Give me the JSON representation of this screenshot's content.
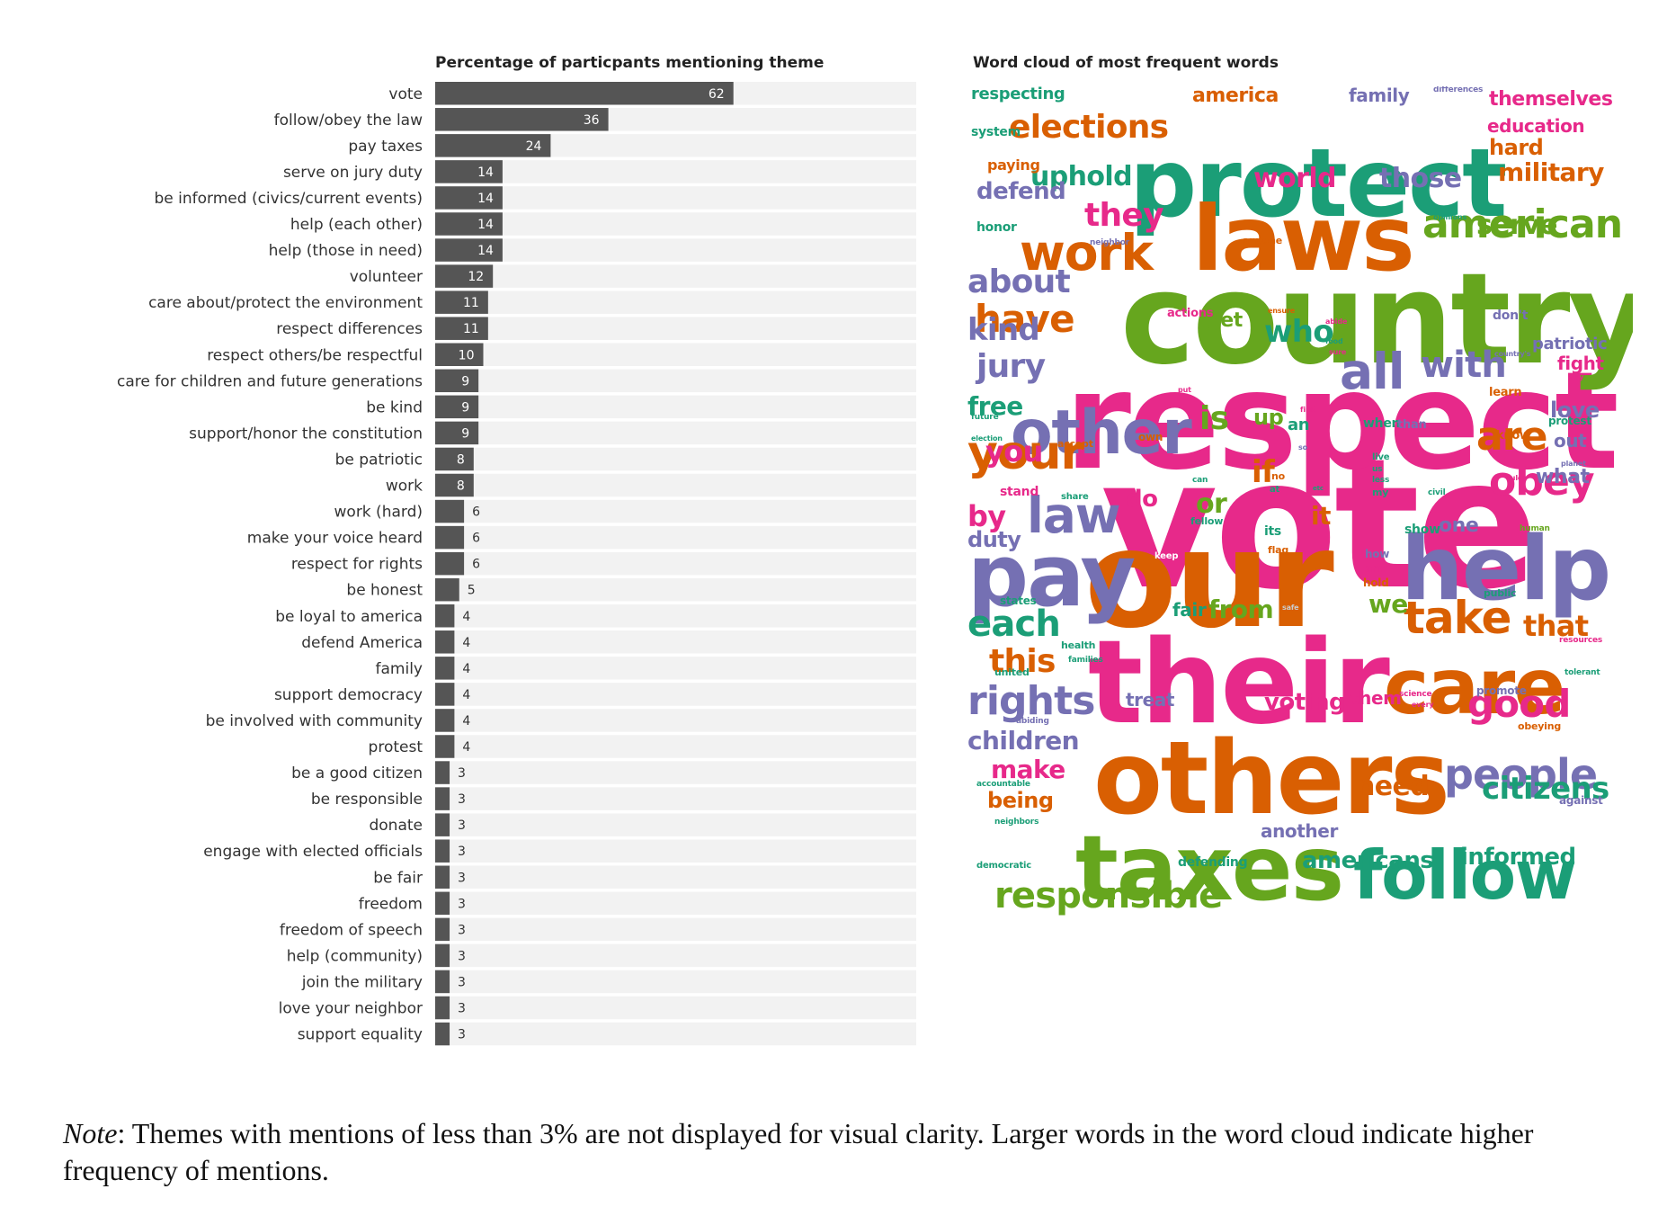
{
  "chart_data": [
    {
      "type": "bar",
      "orientation": "horizontal",
      "title": "Percentage of particpants mentioning theme",
      "xlim": [
        0,
        100
      ],
      "categories": [
        "vote",
        "follow/obey the law",
        "pay taxes",
        "serve on jury duty",
        "be informed (civics/current events)",
        "help (each other)",
        "help (those in need)",
        "volunteer",
        "care about/protect the environment",
        "respect differences",
        "respect others/be respectful",
        "care for children and future generations",
        "be kind",
        "support/honor the constitution",
        "be patriotic",
        "work",
        "work (hard)",
        "make your voice heard",
        "respect for rights",
        "be honest",
        "be loyal to america",
        "defend America",
        "family",
        "support democracy",
        "be involved with community",
        "protest",
        "be a good citizen",
        "be responsible",
        "donate",
        "engage with elected officials",
        "be fair",
        "freedom",
        "freedom of speech",
        "help (community)",
        "join the military",
        "love your neighbor",
        "support equality"
      ],
      "values": [
        62,
        36,
        24,
        14,
        14,
        14,
        14,
        12,
        11,
        11,
        10,
        9,
        9,
        9,
        8,
        8,
        6,
        6,
        6,
        5,
        4,
        4,
        4,
        4,
        4,
        4,
        3,
        3,
        3,
        3,
        3,
        3,
        3,
        3,
        3,
        3,
        3
      ],
      "bar_color": "#555555",
      "track_color": "#f2f2f2",
      "label_color_inside": "#ffffff",
      "label_color_outside": "#333333"
    },
    {
      "type": "word-cloud",
      "title": "Word cloud of most frequent words",
      "words": [
        {
          "text": "vote",
          "color": "#e7298a",
          "weight": 200
        },
        {
          "text": "respect",
          "color": "#e7298a",
          "weight": 150
        },
        {
          "text": "country",
          "color": "#66a61e",
          "weight": 140
        },
        {
          "text": "our",
          "color": "#d95f02",
          "weight": 150
        },
        {
          "text": "their",
          "color": "#e7298a",
          "weight": 128
        },
        {
          "text": "others",
          "color": "#d95f02",
          "weight": 112
        },
        {
          "text": "protect",
          "color": "#1b9e77",
          "weight": 105
        },
        {
          "text": "laws",
          "color": "#d95f02",
          "weight": 100
        },
        {
          "text": "taxes",
          "color": "#66a61e",
          "weight": 100
        },
        {
          "text": "help",
          "color": "#7570b3",
          "weight": 98
        },
        {
          "text": "pay",
          "color": "#7570b3",
          "weight": 95
        },
        {
          "text": "care",
          "color": "#d95f02",
          "weight": 85
        },
        {
          "text": "follow",
          "color": "#1b9e77",
          "weight": 75
        },
        {
          "text": "other",
          "color": "#7570b3",
          "weight": 68
        },
        {
          "text": "all",
          "color": "#7570b3",
          "weight": 55
        },
        {
          "text": "work",
          "color": "#d95f02",
          "weight": 55
        },
        {
          "text": "law",
          "color": "#7570b3",
          "weight": 55
        },
        {
          "text": "your",
          "color": "#d95f02",
          "weight": 52
        },
        {
          "text": "take",
          "color": "#d95f02",
          "weight": 50
        },
        {
          "text": "people",
          "color": "#7570b3",
          "weight": 46
        },
        {
          "text": "rights",
          "color": "#7570b3",
          "weight": 44
        },
        {
          "text": "american",
          "color": "#66a61e",
          "weight": 44
        },
        {
          "text": "obey",
          "color": "#e7298a",
          "weight": 44
        },
        {
          "text": "are",
          "color": "#d95f02",
          "weight": 44
        },
        {
          "text": "good",
          "color": "#e7298a",
          "weight": 42
        },
        {
          "text": "have",
          "color": "#d95f02",
          "weight": 42
        },
        {
          "text": "responsible",
          "color": "#66a61e",
          "weight": 40
        },
        {
          "text": "with",
          "color": "#7570b3",
          "weight": 40
        },
        {
          "text": "elections",
          "color": "#d95f02",
          "weight": 36
        },
        {
          "text": "they",
          "color": "#e7298a",
          "weight": 36
        },
        {
          "text": "about",
          "color": "#7570b3",
          "weight": 36
        },
        {
          "text": "each",
          "color": "#1b9e77",
          "weight": 40
        },
        {
          "text": "who",
          "color": "#1b9e77",
          "weight": 34
        },
        {
          "text": "uphold",
          "color": "#1b9e77",
          "weight": 30
        },
        {
          "text": "world",
          "color": "#e7298a",
          "weight": 30
        },
        {
          "text": "those",
          "color": "#7570b3",
          "weight": 30
        },
        {
          "text": "military",
          "color": "#d95f02",
          "weight": 28
        },
        {
          "text": "serve",
          "color": "#66a61e",
          "weight": 30
        },
        {
          "text": "kind",
          "color": "#7570b3",
          "weight": 34
        },
        {
          "text": "jury",
          "color": "#7570b3",
          "weight": 36
        },
        {
          "text": "free",
          "color": "#1b9e77",
          "weight": 28
        },
        {
          "text": "you",
          "color": "#e7298a",
          "weight": 32
        },
        {
          "text": "by",
          "color": "#e7298a",
          "weight": 32
        },
        {
          "text": "duty",
          "color": "#7570b3",
          "weight": 24
        },
        {
          "text": "this",
          "color": "#d95f02",
          "weight": 36
        },
        {
          "text": "children",
          "color": "#7570b3",
          "weight": 28
        },
        {
          "text": "make",
          "color": "#e7298a",
          "weight": 28
        },
        {
          "text": "being",
          "color": "#d95f02",
          "weight": 24
        },
        {
          "text": "citizens",
          "color": "#1b9e77",
          "weight": 34
        },
        {
          "text": "need",
          "color": "#d95f02",
          "weight": 30
        },
        {
          "text": "americans",
          "color": "#1b9e77",
          "weight": 26
        },
        {
          "text": "informed",
          "color": "#1b9e77",
          "weight": 26
        },
        {
          "text": "that",
          "color": "#d95f02",
          "weight": 32
        },
        {
          "text": "voting",
          "color": "#e7298a",
          "weight": 26
        },
        {
          "text": "from",
          "color": "#66a61e",
          "weight": 28
        },
        {
          "text": "we",
          "color": "#66a61e",
          "weight": 28
        },
        {
          "text": "love",
          "color": "#7570b3",
          "weight": 24
        },
        {
          "text": "fight",
          "color": "#e7298a",
          "weight": 20
        },
        {
          "text": "patriotic",
          "color": "#7570b3",
          "weight": 18
        },
        {
          "text": "is",
          "color": "#66a61e",
          "weight": 36
        },
        {
          "text": "up",
          "color": "#66a61e",
          "weight": 24
        },
        {
          "text": "or",
          "color": "#66a61e",
          "weight": 30
        },
        {
          "text": "if",
          "color": "#d95f02",
          "weight": 34
        },
        {
          "text": "it",
          "color": "#d95f02",
          "weight": 28
        },
        {
          "text": "do",
          "color": "#e7298a",
          "weight": 26
        },
        {
          "text": "get",
          "color": "#66a61e",
          "weight": 22
        },
        {
          "text": "one",
          "color": "#7570b3",
          "weight": 22
        },
        {
          "text": "what",
          "color": "#7570b3",
          "weight": 22
        },
        {
          "text": "out",
          "color": "#7570b3",
          "weight": 20
        },
        {
          "text": "fair",
          "color": "#1b9e77",
          "weight": 20
        },
        {
          "text": "treat",
          "color": "#7570b3",
          "weight": 20
        },
        {
          "text": "them",
          "color": "#e7298a",
          "weight": 20
        },
        {
          "text": "another",
          "color": "#7570b3",
          "weight": 20
        },
        {
          "text": "defend",
          "color": "#7570b3",
          "weight": 26
        },
        {
          "text": "america",
          "color": "#d95f02",
          "weight": 22
        },
        {
          "text": "family",
          "color": "#7570b3",
          "weight": 20
        },
        {
          "text": "themselves",
          "color": "#e7298a",
          "weight": 22
        },
        {
          "text": "education",
          "color": "#e7298a",
          "weight": 20
        },
        {
          "text": "hard",
          "color": "#d95f02",
          "weight": 24
        },
        {
          "text": "respecting",
          "color": "#1b9e77",
          "weight": 18
        },
        {
          "text": "system",
          "color": "#1b9e77",
          "weight": 14
        },
        {
          "text": "paying",
          "color": "#d95f02",
          "weight": 16
        },
        {
          "text": "honor",
          "color": "#1b9e77",
          "weight": 14
        },
        {
          "text": "an",
          "color": "#1b9e77",
          "weight": 18
        },
        {
          "text": "when",
          "color": "#1b9e77",
          "weight": 14
        },
        {
          "text": "than",
          "color": "#7570b3",
          "weight": 13
        },
        {
          "text": "know",
          "color": "#d95f02",
          "weight": 13
        },
        {
          "text": "protest",
          "color": "#1b9e77",
          "weight": 12
        },
        {
          "text": "learn",
          "color": "#d95f02",
          "weight": 13
        },
        {
          "text": "don't",
          "color": "#7570b3",
          "weight": 14
        },
        {
          "text": "actions",
          "color": "#e7298a",
          "weight": 13
        },
        {
          "text": "accept",
          "color": "#d95f02",
          "weight": 11
        },
        {
          "text": "own",
          "color": "#d95f02",
          "weight": 12
        },
        {
          "text": "stand",
          "color": "#e7298a",
          "weight": 14
        },
        {
          "text": "share",
          "color": "#1b9e77",
          "weight": 10
        },
        {
          "text": "fellow",
          "color": "#1b9e77",
          "weight": 11
        },
        {
          "text": "its",
          "color": "#1b9e77",
          "weight": 14
        },
        {
          "text": "flag",
          "color": "#d95f02",
          "weight": 11
        },
        {
          "text": "keep",
          "color": "#ffffff",
          "weight": 10
        },
        {
          "text": "how",
          "color": "#7570b3",
          "weight": 12
        },
        {
          "text": "any",
          "color": "#e7298a",
          "weight": 12
        },
        {
          "text": "hold",
          "color": "#d95f02",
          "weight": 12
        },
        {
          "text": "show",
          "color": "#1b9e77",
          "weight": 14
        },
        {
          "text": "human",
          "color": "#66a61e",
          "weight": 9
        },
        {
          "text": "public",
          "color": "#1b9e77",
          "weight": 11
        },
        {
          "text": "states",
          "color": "#1b9e77",
          "weight": 12
        },
        {
          "text": "safe",
          "color": "#cccccc",
          "weight": 8
        },
        {
          "text": "health",
          "color": "#1b9e77",
          "weight": 11
        },
        {
          "text": "families",
          "color": "#1b9e77",
          "weight": 9
        },
        {
          "text": "united",
          "color": "#1b9e77",
          "weight": 11
        },
        {
          "text": "resources",
          "color": "#e7298a",
          "weight": 9
        },
        {
          "text": "tolerant",
          "color": "#1b9e77",
          "weight": 9
        },
        {
          "text": "promote",
          "color": "#7570b3",
          "weight": 12
        },
        {
          "text": "science",
          "color": "#e7298a",
          "weight": 9
        },
        {
          "text": "every",
          "color": "#e7298a",
          "weight": 8
        },
        {
          "text": "obeying",
          "color": "#d95f02",
          "weight": 11
        },
        {
          "text": "abiding",
          "color": "#7570b3",
          "weight": 9
        },
        {
          "text": "accountable",
          "color": "#1b9e77",
          "weight": 9
        },
        {
          "text": "neighbors",
          "color": "#1b9e77",
          "weight": 9
        },
        {
          "text": "against",
          "color": "#7570b3",
          "weight": 12
        },
        {
          "text": "democratic",
          "color": "#1b9e77",
          "weight": 10
        },
        {
          "text": "defending",
          "color": "#1b9e77",
          "weight": 14
        },
        {
          "text": "differences",
          "color": "#7570b3",
          "weight": 9
        },
        {
          "text": "opinions",
          "color": "#1b9e77",
          "weight": 8
        },
        {
          "text": "anyone",
          "color": "#d95f02",
          "weight": 11
        },
        {
          "text": "neighbor",
          "color": "#7570b3",
          "weight": 9
        },
        {
          "text": "ensure",
          "color": "#d95f02",
          "weight": 8
        },
        {
          "text": "abide",
          "color": "#e7298a",
          "weight": 8
        },
        {
          "text": "food",
          "color": "#1b9e77",
          "weight": 8
        },
        {
          "text": "sure",
          "color": "#e7298a",
          "weight": 8
        },
        {
          "text": "country's",
          "color": "#7570b3",
          "weight": 8
        },
        {
          "text": "way",
          "color": "#e7298a",
          "weight": 8
        },
        {
          "text": "future",
          "color": "#1b9e77",
          "weight": 9
        },
        {
          "text": "election",
          "color": "#1b9e77",
          "weight": 8
        },
        {
          "text": "put",
          "color": "#e7298a",
          "weight": 8
        },
        {
          "text": "first",
          "color": "#e7298a",
          "weight": 8
        },
        {
          "text": "so",
          "color": "#7570b3",
          "weight": 8
        },
        {
          "text": "live",
          "color": "#1b9e77",
          "weight": 10
        },
        {
          "text": "us",
          "color": "#1b9e77",
          "weight": 9
        },
        {
          "text": "less",
          "color": "#1b9e77",
          "weight": 9
        },
        {
          "text": "my",
          "color": "#1b9e77",
          "weight": 11
        },
        {
          "text": "can",
          "color": "#1b9e77",
          "weight": 9
        },
        {
          "text": "at",
          "color": "#1b9e77",
          "weight": 10
        },
        {
          "text": "no",
          "color": "#d95f02",
          "weight": 11
        },
        {
          "text": "etc",
          "color": "#1b9e77",
          "weight": 7
        },
        {
          "text": "civil",
          "color": "#1b9e77",
          "weight": 9
        },
        {
          "text": "rules",
          "color": "#e7298a",
          "weight": 8
        },
        {
          "text": "planet",
          "color": "#7570b3",
          "weight": 8
        }
      ]
    }
  ],
  "note": {
    "label": "Note",
    "text": ": Themes with mentions of less than 3% are not displayed for visual clarity. Larger words in the word cloud indicate higher frequency of mentions."
  }
}
